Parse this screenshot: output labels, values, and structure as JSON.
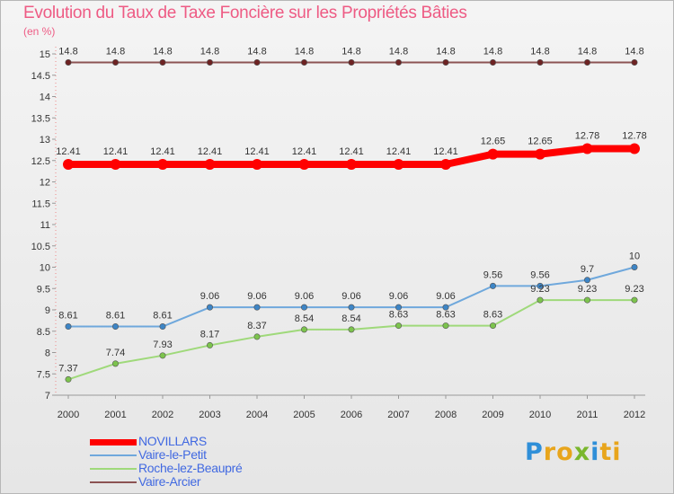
{
  "title": "Evolution du Taux de Taxe Foncière sur les Propriétés Bâties",
  "unit": "(en %)",
  "logo": {
    "text": "Proxiti",
    "letter_colors": [
      "#2f8fd8",
      "#e8a51c",
      "#e8a51c",
      "#7ab72d",
      "#2f8fd8",
      "#e8a51c",
      "#e8a51c"
    ]
  },
  "chart_data": {
    "type": "line",
    "x": [
      "2000",
      "2001",
      "2002",
      "2003",
      "2004",
      "2005",
      "2006",
      "2007",
      "2008",
      "2009",
      "2010",
      "2011",
      "2012"
    ],
    "ylim": [
      7,
      15
    ],
    "yticks": [
      "7",
      "7.5",
      "8",
      "8.5",
      "9",
      "9.5",
      "10",
      "10.5",
      "11",
      "11.5",
      "12",
      "12.5",
      "13",
      "13.5",
      "14",
      "14.5",
      "15"
    ],
    "grid": false,
    "legend_position": "bottom-left",
    "series": [
      {
        "name": "NOVILLARS",
        "color": "#ff0000",
        "marker": "#ff0000",
        "values": [
          12.41,
          12.41,
          12.41,
          12.41,
          12.41,
          12.41,
          12.41,
          12.41,
          12.41,
          12.65,
          12.65,
          12.78,
          12.78
        ],
        "labels": [
          "12.41",
          "12.41",
          "12.41",
          "12.41",
          "12.41",
          "12.41",
          "12.41",
          "12.41",
          "12.41",
          "12.65",
          "12.65",
          "12.78",
          "12.78"
        ]
      },
      {
        "name": "Vaire-le-Petit",
        "color": "#6fa8dc",
        "marker": "#3d85c6",
        "values": [
          8.61,
          8.61,
          8.61,
          9.06,
          9.06,
          9.06,
          9.06,
          9.06,
          9.06,
          9.56,
          9.56,
          9.7,
          10
        ],
        "labels": [
          "8.61",
          "8.61",
          "8.61",
          "9.06",
          "9.06",
          "9.06",
          "9.06",
          "9.06",
          "9.06",
          "9.56",
          "9.56",
          "9.7",
          "10"
        ]
      },
      {
        "name": "Roche-lez-Beaupré",
        "color": "#9fd97a",
        "marker": "#7cc34d",
        "values": [
          7.37,
          7.74,
          7.93,
          8.17,
          8.37,
          8.54,
          8.54,
          8.63,
          8.63,
          8.63,
          9.23,
          9.23,
          9.23
        ],
        "labels": [
          "7.37",
          "7.74",
          "7.93",
          "8.17",
          "8.37",
          "8.54",
          "8.54",
          "8.63",
          "8.63",
          "8.63",
          "9.23",
          "9.23",
          "9.23"
        ]
      },
      {
        "name": "Vaire-Arcier",
        "color": "#8c5353",
        "marker": "#6e2323",
        "values": [
          14.8,
          14.8,
          14.8,
          14.8,
          14.8,
          14.8,
          14.8,
          14.8,
          14.8,
          14.8,
          14.8,
          14.8,
          14.8
        ],
        "labels": [
          "14.8",
          "14.8",
          "14.8",
          "14.8",
          "14.8",
          "14.8",
          "14.8",
          "14.8",
          "14.8",
          "14.8",
          "14.8",
          "14.8",
          "14.8"
        ]
      }
    ]
  }
}
